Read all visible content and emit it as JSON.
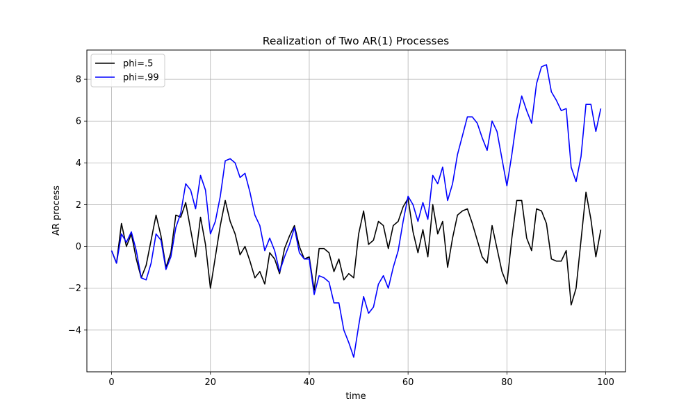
{
  "chart_data": {
    "type": "line",
    "title": "Realization of Two AR(1) Processes",
    "xlabel": "time",
    "ylabel": "AR process",
    "xlim": [
      -5,
      104
    ],
    "ylim": [
      -6,
      9.4
    ],
    "xticks": [
      0,
      20,
      40,
      60,
      80,
      100
    ],
    "yticks": [
      -4,
      -2,
      0,
      2,
      4,
      6,
      8
    ],
    "xtick_labels": [
      "0",
      "20",
      "40",
      "60",
      "80",
      "100"
    ],
    "ytick_labels": [
      "−4",
      "−2",
      "0",
      "2",
      "4",
      "6",
      "8"
    ],
    "grid": true,
    "legend_position": "top-left",
    "x": [
      0,
      1,
      2,
      3,
      4,
      5,
      6,
      7,
      8,
      9,
      10,
      11,
      12,
      13,
      14,
      15,
      16,
      17,
      18,
      19,
      20,
      21,
      22,
      23,
      24,
      25,
      26,
      27,
      28,
      29,
      30,
      31,
      32,
      33,
      34,
      35,
      36,
      37,
      38,
      39,
      40,
      41,
      42,
      43,
      44,
      45,
      46,
      47,
      48,
      49,
      50,
      51,
      52,
      53,
      54,
      55,
      56,
      57,
      58,
      59,
      60,
      61,
      62,
      63,
      64,
      65,
      66,
      67,
      68,
      69,
      70,
      71,
      72,
      73,
      74,
      75,
      76,
      77,
      78,
      79,
      80,
      81,
      82,
      83,
      84,
      85,
      86,
      87,
      88,
      89,
      90,
      91,
      92,
      93,
      94,
      95,
      96,
      97,
      98,
      99
    ],
    "series": [
      {
        "name": "phi=.5",
        "color": "#000000",
        "values": [
          -0.2,
          -0.8,
          1.1,
          0.0,
          0.6,
          -0.6,
          -1.5,
          -0.9,
          0.3,
          1.5,
          0.5,
          -1.0,
          -0.3,
          1.5,
          1.4,
          2.1,
          0.8,
          -0.5,
          1.4,
          0.1,
          -2.0,
          -0.5,
          1.0,
          2.2,
          1.2,
          0.6,
          -0.4,
          -0.0,
          -0.7,
          -1.5,
          -1.2,
          -1.8,
          -0.3,
          -0.6,
          -1.3,
          -0.1,
          0.5,
          1.0,
          0.0,
          -0.6,
          -0.5,
          -2.1,
          -0.1,
          -0.1,
          -0.3,
          -1.2,
          -0.6,
          -1.6,
          -1.3,
          -1.5,
          0.6,
          1.7,
          0.1,
          0.3,
          1.2,
          1.0,
          -0.1,
          1.0,
          1.2,
          1.9,
          2.3,
          0.7,
          -0.3,
          0.8,
          -0.5,
          2.0,
          0.6,
          1.2,
          -1.0,
          0.4,
          1.5,
          1.7,
          1.8,
          1.1,
          0.3,
          -0.5,
          -0.8,
          1.0,
          -0.1,
          -1.2,
          -1.8,
          0.4,
          2.2,
          2.2,
          0.4,
          -0.2,
          1.8,
          1.7,
          1.1,
          -0.6,
          -0.7,
          -0.7,
          -0.2,
          -2.8,
          -2.0,
          0.3,
          2.6,
          1.3,
          -0.5,
          0.8
        ]
      },
      {
        "name": "phi=.99",
        "color": "#0000ff",
        "values": [
          -0.2,
          -0.8,
          0.6,
          0.2,
          0.7,
          -0.2,
          -1.5,
          -1.6,
          -0.8,
          0.6,
          0.3,
          -1.1,
          -0.5,
          0.9,
          1.6,
          3.0,
          2.7,
          1.8,
          3.4,
          2.7,
          0.6,
          1.2,
          2.4,
          4.1,
          4.2,
          4.0,
          3.3,
          3.5,
          2.6,
          1.5,
          1.0,
          -0.2,
          0.4,
          -0.2,
          -1.2,
          -0.5,
          0.1,
          0.9,
          -0.3,
          -0.6,
          -0.6,
          -2.3,
          -1.4,
          -1.5,
          -1.7,
          -2.7,
          -2.7,
          -4.0,
          -4.6,
          -5.3,
          -3.8,
          -2.4,
          -3.2,
          -2.9,
          -1.8,
          -1.4,
          -2.0,
          -1.0,
          -0.2,
          1.2,
          2.4,
          2.0,
          1.2,
          2.1,
          1.3,
          3.4,
          3.0,
          3.8,
          2.2,
          3.0,
          4.4,
          5.3,
          6.2,
          6.2,
          5.9,
          5.2,
          4.6,
          6.0,
          5.5,
          4.2,
          2.9,
          4.4,
          6.1,
          7.2,
          6.5,
          5.9,
          7.8,
          8.6,
          8.7,
          7.4,
          7.0,
          6.5,
          6.6,
          3.8,
          3.1,
          4.3,
          6.8,
          6.8,
          5.5,
          6.6
        ]
      }
    ]
  }
}
